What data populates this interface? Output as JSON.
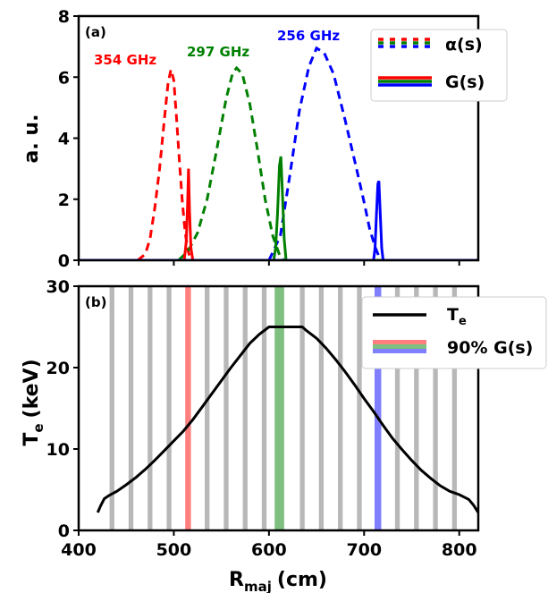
{
  "colors": {
    "red": "#ff0000",
    "green": "#008000",
    "blue": "#0000ff",
    "gray": "#b8b8b8",
    "black": "#000000"
  },
  "chart_data": [
    {
      "panel": "(a)",
      "type": "line",
      "ylabel": "a. u.",
      "xlim": [
        400,
        820
      ],
      "ylim": [
        0,
        8
      ],
      "yticks": [
        "0",
        "2",
        "4",
        "6",
        "8"
      ],
      "legend": {
        "placement": "top-right",
        "entries": [
          "α(s)",
          "G(s)"
        ]
      },
      "annotations": [
        "354 GHz",
        "297 GHz",
        "256 GHz"
      ],
      "series": [
        {
          "name": "α(s)",
          "label": "354 GHz",
          "color": "red",
          "style": "dashed",
          "x": [
            462,
            470,
            475,
            480,
            485,
            490,
            494,
            497,
            500,
            503,
            506,
            509,
            512,
            515,
            518
          ],
          "y": [
            0,
            0.2,
            0.7,
            1.7,
            3.0,
            4.6,
            5.8,
            6.25,
            5.9,
            4.6,
            3.2,
            1.9,
            0.9,
            0.3,
            0
          ]
        },
        {
          "name": "α(s)",
          "label": "297 GHz",
          "color": "green",
          "style": "dashed",
          "x": [
            505,
            515,
            525,
            535,
            545,
            555,
            562,
            566,
            572,
            580,
            588,
            596,
            604,
            612,
            616
          ],
          "y": [
            0,
            0.3,
            0.9,
            2.0,
            3.6,
            5.3,
            6.15,
            6.3,
            6.1,
            5.1,
            3.6,
            2.0,
            0.8,
            0.1,
            0
          ]
        },
        {
          "name": "α(s)",
          "label": "256 GHz",
          "color": "blue",
          "style": "dashed",
          "x": [
            600,
            612,
            622,
            632,
            642,
            650,
            658,
            668,
            680,
            692,
            700,
            706,
            712,
            716,
            720
          ],
          "y": [
            0,
            0.8,
            2.8,
            4.9,
            6.35,
            6.95,
            6.8,
            6.1,
            4.6,
            3.0,
            1.9,
            1.0,
            0.4,
            0.1,
            0
          ]
        },
        {
          "name": "G(s)",
          "color": "red",
          "style": "solid",
          "x": [
            400,
            511,
            513,
            514.5,
            515.5,
            516.5,
            518,
            520,
            820
          ],
          "y": [
            0,
            0,
            0.6,
            1.9,
            3.0,
            1.6,
            0.4,
            0,
            0
          ]
        },
        {
          "name": "G(s)",
          "color": "green",
          "style": "solid",
          "x": [
            400,
            605,
            607,
            609,
            611,
            612.5,
            614,
            616,
            618,
            820
          ],
          "y": [
            0,
            0,
            0.4,
            1.5,
            3.1,
            3.4,
            2.3,
            0.7,
            0,
            0
          ]
        },
        {
          "name": "G(s)",
          "color": "blue",
          "style": "solid",
          "x": [
            400,
            710,
            711.5,
            713,
            714.5,
            715.5,
            717,
            718.5,
            720,
            820
          ],
          "y": [
            0,
            0,
            0.4,
            1.5,
            2.5,
            2.6,
            1.5,
            0.4,
            0,
            0
          ]
        }
      ]
    },
    {
      "panel": "(b)",
      "type": "line",
      "xlabel": "Rmaj (cm)",
      "xlabel_main": "R",
      "xlabel_sub": "maj",
      "xlabel_unit": "(cm)",
      "ylabel": "Te (keV)",
      "ylabel_main": "T",
      "ylabel_sub": "e",
      "ylabel_unit": "(keV)",
      "xlim": [
        400,
        820
      ],
      "ylim": [
        0,
        30
      ],
      "xticks": [
        "400",
        "500",
        "600",
        "700",
        "800"
      ],
      "yticks": [
        "0",
        "10",
        "20",
        "30"
      ],
      "legend": {
        "placement": "top-right",
        "entries": [
          "Te",
          "90% G(s)"
        ]
      },
      "gray_bands": [
        435,
        455,
        475,
        495,
        535,
        555,
        575,
        595,
        635,
        655,
        675,
        695,
        735,
        755,
        775,
        795
      ],
      "highlight_bands": [
        {
          "x0": 512,
          "x1": 518,
          "color": "red"
        },
        {
          "x0": 606,
          "x1": 616,
          "color": "green"
        },
        {
          "x0": 711,
          "x1": 718,
          "color": "blue"
        }
      ],
      "series": [
        {
          "name": "Te",
          "color": "black",
          "x": [
            420,
            423,
            427,
            432,
            440,
            450,
            460,
            470,
            480,
            490,
            500,
            510,
            520,
            530,
            540,
            550,
            560,
            570,
            580,
            590,
            600,
            605,
            620,
            635,
            640,
            650,
            660,
            670,
            680,
            690,
            700,
            710,
            720,
            730,
            740,
            750,
            760,
            770,
            780,
            790,
            800,
            805,
            810,
            815,
            820
          ],
          "y": [
            2.2,
            3.0,
            3.9,
            4.3,
            4.8,
            5.6,
            6.5,
            7.5,
            8.6,
            9.8,
            11.0,
            12.2,
            13.6,
            15.2,
            16.8,
            18.4,
            20.0,
            21.5,
            23.0,
            24.1,
            25.0,
            25.0,
            25.0,
            25.0,
            24.5,
            23.6,
            22.4,
            21.0,
            19.5,
            17.9,
            16.2,
            14.6,
            12.9,
            11.3,
            9.9,
            8.6,
            7.4,
            6.4,
            5.5,
            4.8,
            4.4,
            4.1,
            3.8,
            3.1,
            2.2
          ]
        }
      ]
    }
  ]
}
